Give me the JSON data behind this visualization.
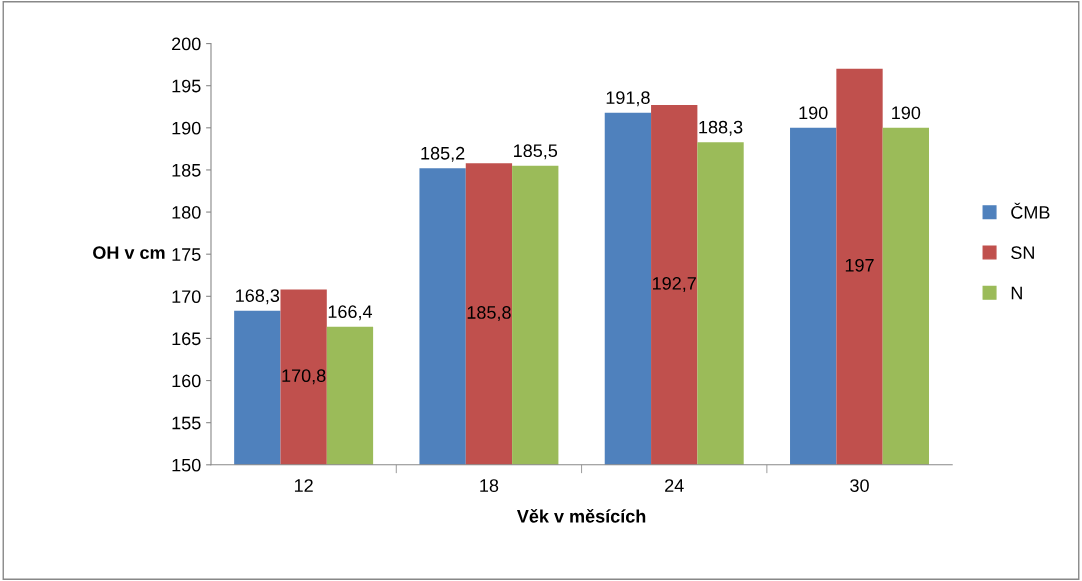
{
  "chart_data": {
    "type": "bar",
    "xlabel": "Věk v měsících",
    "ylabel": "OH v cm",
    "categories": [
      "12",
      "18",
      "24",
      "30"
    ],
    "series": [
      {
        "name": "ČMB",
        "color": "#4f81bd",
        "values": [
          168.3,
          185.2,
          191.8,
          190
        ],
        "value_labels": [
          "168,3",
          "185,2",
          "191,8",
          "190"
        ]
      },
      {
        "name": "SN",
        "color": "#c0504d",
        "values": [
          170.8,
          185.8,
          192.7,
          197
        ],
        "value_labels": [
          "170,8",
          "185,8",
          "192,7",
          "197"
        ]
      },
      {
        "name": "N",
        "color": "#9bbb59",
        "values": [
          166.4,
          185.5,
          188.3,
          190
        ],
        "value_labels": [
          "166,4",
          "185,5",
          "188,3",
          "190"
        ]
      }
    ],
    "ylim": [
      150,
      200
    ],
    "yticks": [
      150,
      155,
      160,
      165,
      170,
      175,
      180,
      185,
      190,
      195,
      200
    ],
    "grid": false,
    "legend": "right"
  }
}
